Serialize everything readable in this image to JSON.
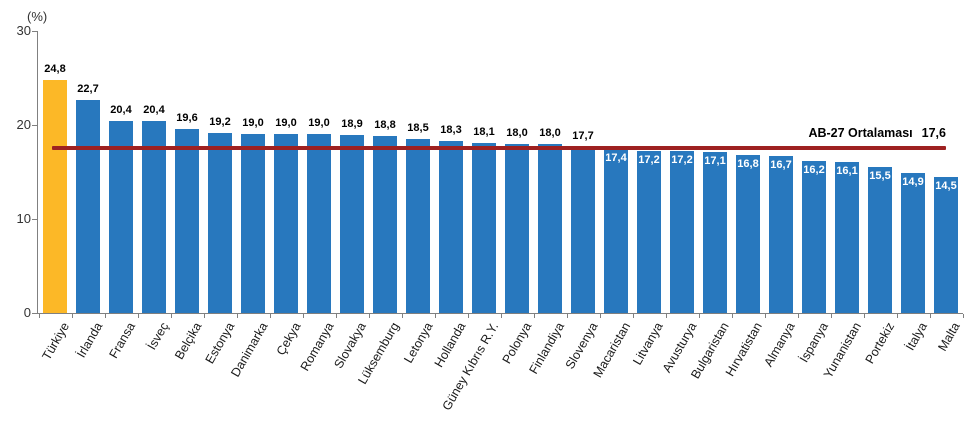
{
  "chart_data": {
    "type": "bar",
    "title": "",
    "y_axis": {
      "label": "(%)",
      "ticks": [
        0,
        10,
        20,
        30
      ],
      "min": 0,
      "max": 30,
      "grid": false
    },
    "categories": [
      "Türkiye",
      "İrlanda",
      "Fransa",
      "İsveç",
      "Belçika",
      "Estonya",
      "Danimarka",
      "Çekya",
      "Romanya",
      "Slovakya",
      "Lüksemburg",
      "Letonya",
      "Hollanda",
      "Güney Kıbrıs R.Y.",
      "Polonya",
      "Finlandiya",
      "Slovenya",
      "Macaristan",
      "Litvanya",
      "Avusturya",
      "Bulgaristan",
      "Hırvatistan",
      "Almanya",
      "İspanya",
      "Yunanistan",
      "Portekiz",
      "İtalya",
      "Malta"
    ],
    "values": [
      24.8,
      22.7,
      20.4,
      20.4,
      19.6,
      19.2,
      19.0,
      19.0,
      19.0,
      18.9,
      18.8,
      18.5,
      18.3,
      18.1,
      18.0,
      18.0,
      17.7,
      17.4,
      17.2,
      17.2,
      17.1,
      16.8,
      16.7,
      16.2,
      16.1,
      15.5,
      14.9,
      14.5
    ],
    "value_labels": [
      "24,8",
      "22,7",
      "20,4",
      "20,4",
      "19,6",
      "19,2",
      "19,0",
      "19,0",
      "19,0",
      "18,9",
      "18,8",
      "18,5",
      "18,3",
      "18,1",
      "18,0",
      "18,0",
      "17,7",
      "17,4",
      "17,2",
      "17,2",
      "17,1",
      "16,8",
      "16,7",
      "16,2",
      "16,1",
      "15,5",
      "14,9",
      "14,5"
    ],
    "highlight": {
      "category": "Türkiye",
      "index": 0
    },
    "value_labels_inside_from_index": 17,
    "avg_line": {
      "label": "AB-27 Ortalaması",
      "value": 17.6,
      "value_label": "17,6"
    },
    "colors": {
      "bar": "#2878BE",
      "highlight_bar": "#FCB827",
      "avg_line": "#9E2121",
      "axis": "#808080",
      "value_label": "#000000",
      "inside_value_label": "#FFFFFF"
    },
    "legend": null
  }
}
